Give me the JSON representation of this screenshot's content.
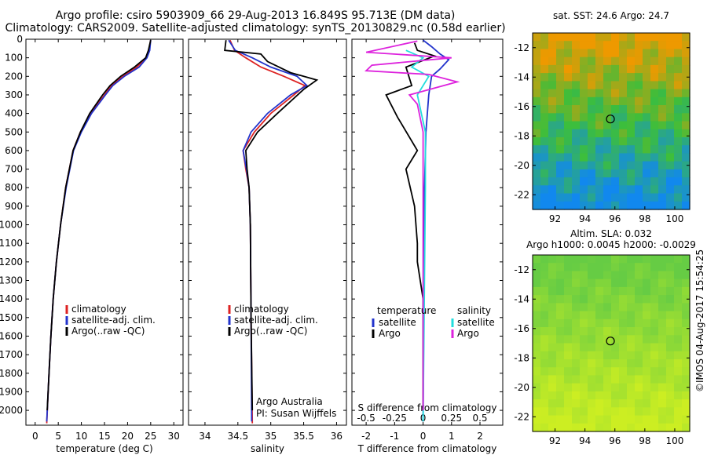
{
  "header": {
    "title_line1": "Argo profile: csiro 5903909_66 29-Aug-2013 16.849S 95.713E (DM data)",
    "title_line2": "Climatology: CARS2009. Satellite-adjusted climatology: synTS_20130829.nc (0.58d earlier)"
  },
  "depth_axis": {
    "ticks": [
      0,
      100,
      200,
      300,
      400,
      500,
      600,
      700,
      800,
      900,
      1000,
      1100,
      1200,
      1300,
      1400,
      1500,
      1600,
      1700,
      1800,
      1900,
      2000
    ],
    "range": [
      0,
      2080
    ]
  },
  "chart_data": [
    {
      "type": "line",
      "id": "temperature",
      "xlabel": "temperature (deg C)",
      "xlim": [
        -2,
        32
      ],
      "xticks": [
        0,
        5,
        10,
        15,
        20,
        25,
        30
      ],
      "legend": [
        "climatology",
        "satellite-adj. clim.",
        "Argo(..raw -QC)"
      ],
      "series": [
        {
          "name": "climatology",
          "color": "#dd2222",
          "points": [
            [
              25.0,
              5
            ],
            [
              24.6,
              60
            ],
            [
              24.0,
              100
            ],
            [
              22.0,
              150
            ],
            [
              19.0,
              200
            ],
            [
              16.5,
              250
            ],
            [
              15.0,
              300
            ],
            [
              12.0,
              400
            ],
            [
              9.8,
              500
            ],
            [
              8.2,
              600
            ],
            [
              6.6,
              800
            ],
            [
              5.5,
              1000
            ],
            [
              4.6,
              1200
            ],
            [
              3.9,
              1400
            ],
            [
              3.4,
              1600
            ],
            [
              3.0,
              1800
            ],
            [
              2.5,
              2070
            ]
          ]
        },
        {
          "name": "satellite-adj. clim.",
          "color": "#2233cc",
          "points": [
            [
              25.0,
              5
            ],
            [
              24.8,
              60
            ],
            [
              24.2,
              100
            ],
            [
              22.5,
              150
            ],
            [
              19.3,
              200
            ],
            [
              16.8,
              250
            ],
            [
              15.2,
              300
            ],
            [
              12.2,
              400
            ],
            [
              10.0,
              500
            ],
            [
              8.3,
              600
            ],
            [
              6.7,
              800
            ],
            [
              5.5,
              1000
            ],
            [
              4.6,
              1200
            ],
            [
              3.9,
              1400
            ],
            [
              3.4,
              1600
            ],
            [
              3.0,
              1800
            ],
            [
              2.5,
              2060
            ]
          ]
        },
        {
          "name": "Argo(..raw -QC)",
          "color": "#000000",
          "points": [
            [
              25.0,
              5
            ],
            [
              24.5,
              60
            ],
            [
              23.9,
              100
            ],
            [
              21.5,
              150
            ],
            [
              18.5,
              200
            ],
            [
              16.2,
              250
            ],
            [
              14.6,
              300
            ],
            [
              11.8,
              400
            ],
            [
              9.8,
              500
            ],
            [
              8.2,
              600
            ],
            [
              6.6,
              800
            ],
            [
              5.5,
              1000
            ],
            [
              4.6,
              1200
            ],
            [
              3.9,
              1400
            ],
            [
              3.4,
              1600
            ],
            [
              3.0,
              1800
            ],
            [
              2.6,
              2000
            ]
          ]
        }
      ]
    },
    {
      "type": "line",
      "id": "salinity",
      "xlabel": "salinity",
      "xlim": [
        33.75,
        36.15
      ],
      "xticks": [
        34,
        34.5,
        35,
        35.5,
        36
      ],
      "legend": [
        "climatology",
        "satellite-adj. clim.",
        "Argo(..raw -QC)"
      ],
      "annotation": [
        "Argo Australia",
        "PI: Susan Wijffels"
      ],
      "series": [
        {
          "name": "climatology",
          "color": "#dd2222",
          "points": [
            [
              34.38,
              5
            ],
            [
              34.45,
              60
            ],
            [
              34.62,
              100
            ],
            [
              34.85,
              150
            ],
            [
              35.2,
              200
            ],
            [
              35.52,
              250
            ],
            [
              35.35,
              300
            ],
            [
              35.0,
              400
            ],
            [
              34.75,
              500
            ],
            [
              34.58,
              600
            ],
            [
              34.62,
              700
            ],
            [
              34.67,
              800
            ],
            [
              34.69,
              1000
            ],
            [
              34.7,
              1500
            ],
            [
              34.72,
              2070
            ]
          ]
        },
        {
          "name": "satellite-adj. clim.",
          "color": "#2233cc",
          "points": [
            [
              34.36,
              5
            ],
            [
              34.46,
              60
            ],
            [
              34.72,
              100
            ],
            [
              35.0,
              150
            ],
            [
              35.4,
              200
            ],
            [
              35.55,
              250
            ],
            [
              35.3,
              300
            ],
            [
              34.95,
              400
            ],
            [
              34.7,
              500
            ],
            [
              34.58,
              600
            ],
            [
              34.63,
              700
            ],
            [
              34.67,
              800
            ],
            [
              34.69,
              1000
            ],
            [
              34.7,
              1500
            ],
            [
              34.71,
              2060
            ]
          ]
        },
        {
          "name": "Argo(..raw -QC)",
          "color": "#000000",
          "points": [
            [
              34.32,
              5
            ],
            [
              34.3,
              60
            ],
            [
              34.85,
              80
            ],
            [
              34.95,
              120
            ],
            [
              35.3,
              180
            ],
            [
              35.7,
              220
            ],
            [
              35.5,
              270
            ],
            [
              35.1,
              400
            ],
            [
              34.8,
              500
            ],
            [
              34.62,
              600
            ],
            [
              34.64,
              700
            ],
            [
              34.67,
              800
            ],
            [
              34.69,
              1000
            ],
            [
              34.7,
              1500
            ],
            [
              34.72,
              2000
            ]
          ]
        }
      ]
    },
    {
      "type": "line",
      "id": "differences",
      "xlabel": "T difference from climatology",
      "xlabel_top": "S difference from climatology",
      "t_xlim": [
        -2.5,
        2.8
      ],
      "xticks_T": [
        -2,
        -1,
        0,
        1,
        2
      ],
      "xticks_S": [
        -0.5,
        -0.25,
        0,
        0.25,
        0.5
      ],
      "s_to_t_scale": 4,
      "legend_temperature": {
        "title": "temperature",
        "items": [
          "satellite",
          "Argo"
        ]
      },
      "legend_salinity": {
        "title": "salinity",
        "items": [
          "satellite",
          "Argo"
        ]
      },
      "series": [
        {
          "name": "T satellite",
          "color": "#2233cc",
          "units": "T",
          "points": [
            [
              0.0,
              5
            ],
            [
              0.3,
              40
            ],
            [
              0.6,
              80
            ],
            [
              0.9,
              110
            ],
            [
              0.6,
              160
            ],
            [
              0.3,
              200
            ],
            [
              0.2,
              300
            ],
            [
              0.1,
              500
            ],
            [
              0.05,
              800
            ],
            [
              0.0,
              2060
            ]
          ]
        },
        {
          "name": "T Argo",
          "color": "#000000",
          "units": "T",
          "points": [
            [
              -0.3,
              20
            ],
            [
              -0.2,
              60
            ],
            [
              0.4,
              90
            ],
            [
              -0.6,
              150
            ],
            [
              -0.4,
              250
            ],
            [
              -1.3,
              300
            ],
            [
              -0.9,
              420
            ],
            [
              -0.2,
              600
            ],
            [
              -0.6,
              700
            ],
            [
              -0.3,
              900
            ],
            [
              -0.2,
              1100
            ],
            [
              -0.2,
              1200
            ],
            [
              0.0,
              1400
            ],
            [
              0.0,
              2000
            ]
          ]
        },
        {
          "name": "S satellite",
          "color": "#22dddd",
          "units": "S",
          "points": [
            [
              -0.15,
              60
            ],
            [
              0.0,
              100
            ],
            [
              -0.1,
              150
            ],
            [
              0.05,
              200
            ],
            [
              -0.05,
              300
            ],
            [
              0.02,
              500
            ],
            [
              0.02,
              800
            ],
            [
              0.0,
              2060
            ]
          ]
        },
        {
          "name": "S Argo",
          "color": "#dd22dd",
          "units": "S",
          "points": [
            [
              -0.05,
              10
            ],
            [
              -0.5,
              70
            ],
            [
              0.25,
              100
            ],
            [
              -0.45,
              140
            ],
            [
              -0.5,
              170
            ],
            [
              0.05,
              190
            ],
            [
              0.3,
              230
            ],
            [
              -0.12,
              300
            ],
            [
              -0.05,
              350
            ],
            [
              0.0,
              500
            ],
            [
              0.0,
              700
            ],
            [
              0.0,
              2000
            ]
          ]
        }
      ]
    }
  ],
  "maps": [
    {
      "id": "sst",
      "title": "sat. SST: 24.6  Argo: 24.7",
      "subtitle": "",
      "xticks": [
        92,
        94,
        96,
        98,
        100
      ],
      "yticks": [
        -12,
        -14,
        -16,
        -18,
        -20,
        -22
      ],
      "lon": [
        90.5,
        101.0
      ],
      "lat": [
        -23.0,
        -11.0
      ],
      "marker": [
        95.7,
        -16.85
      ],
      "color_top": "#ee9900",
      "color_bottom": "#1188ee"
    },
    {
      "id": "sla",
      "title": "Altim. SLA: 0.032",
      "subtitle": "Argo h1000: 0.0045 h2000: -0.0029",
      "xticks": [
        92,
        94,
        96,
        98,
        100
      ],
      "yticks": [
        -12,
        -14,
        -16,
        -18,
        -20,
        -22
      ],
      "lon": [
        90.5,
        101.0
      ],
      "lat": [
        -23.0,
        -11.0
      ],
      "marker": [
        95.7,
        -16.85
      ],
      "color_top": "#66cc44",
      "color_bottom": "#ccee22"
    }
  ],
  "stamp": "©IMOS 04-Aug-2017 15:54:25"
}
